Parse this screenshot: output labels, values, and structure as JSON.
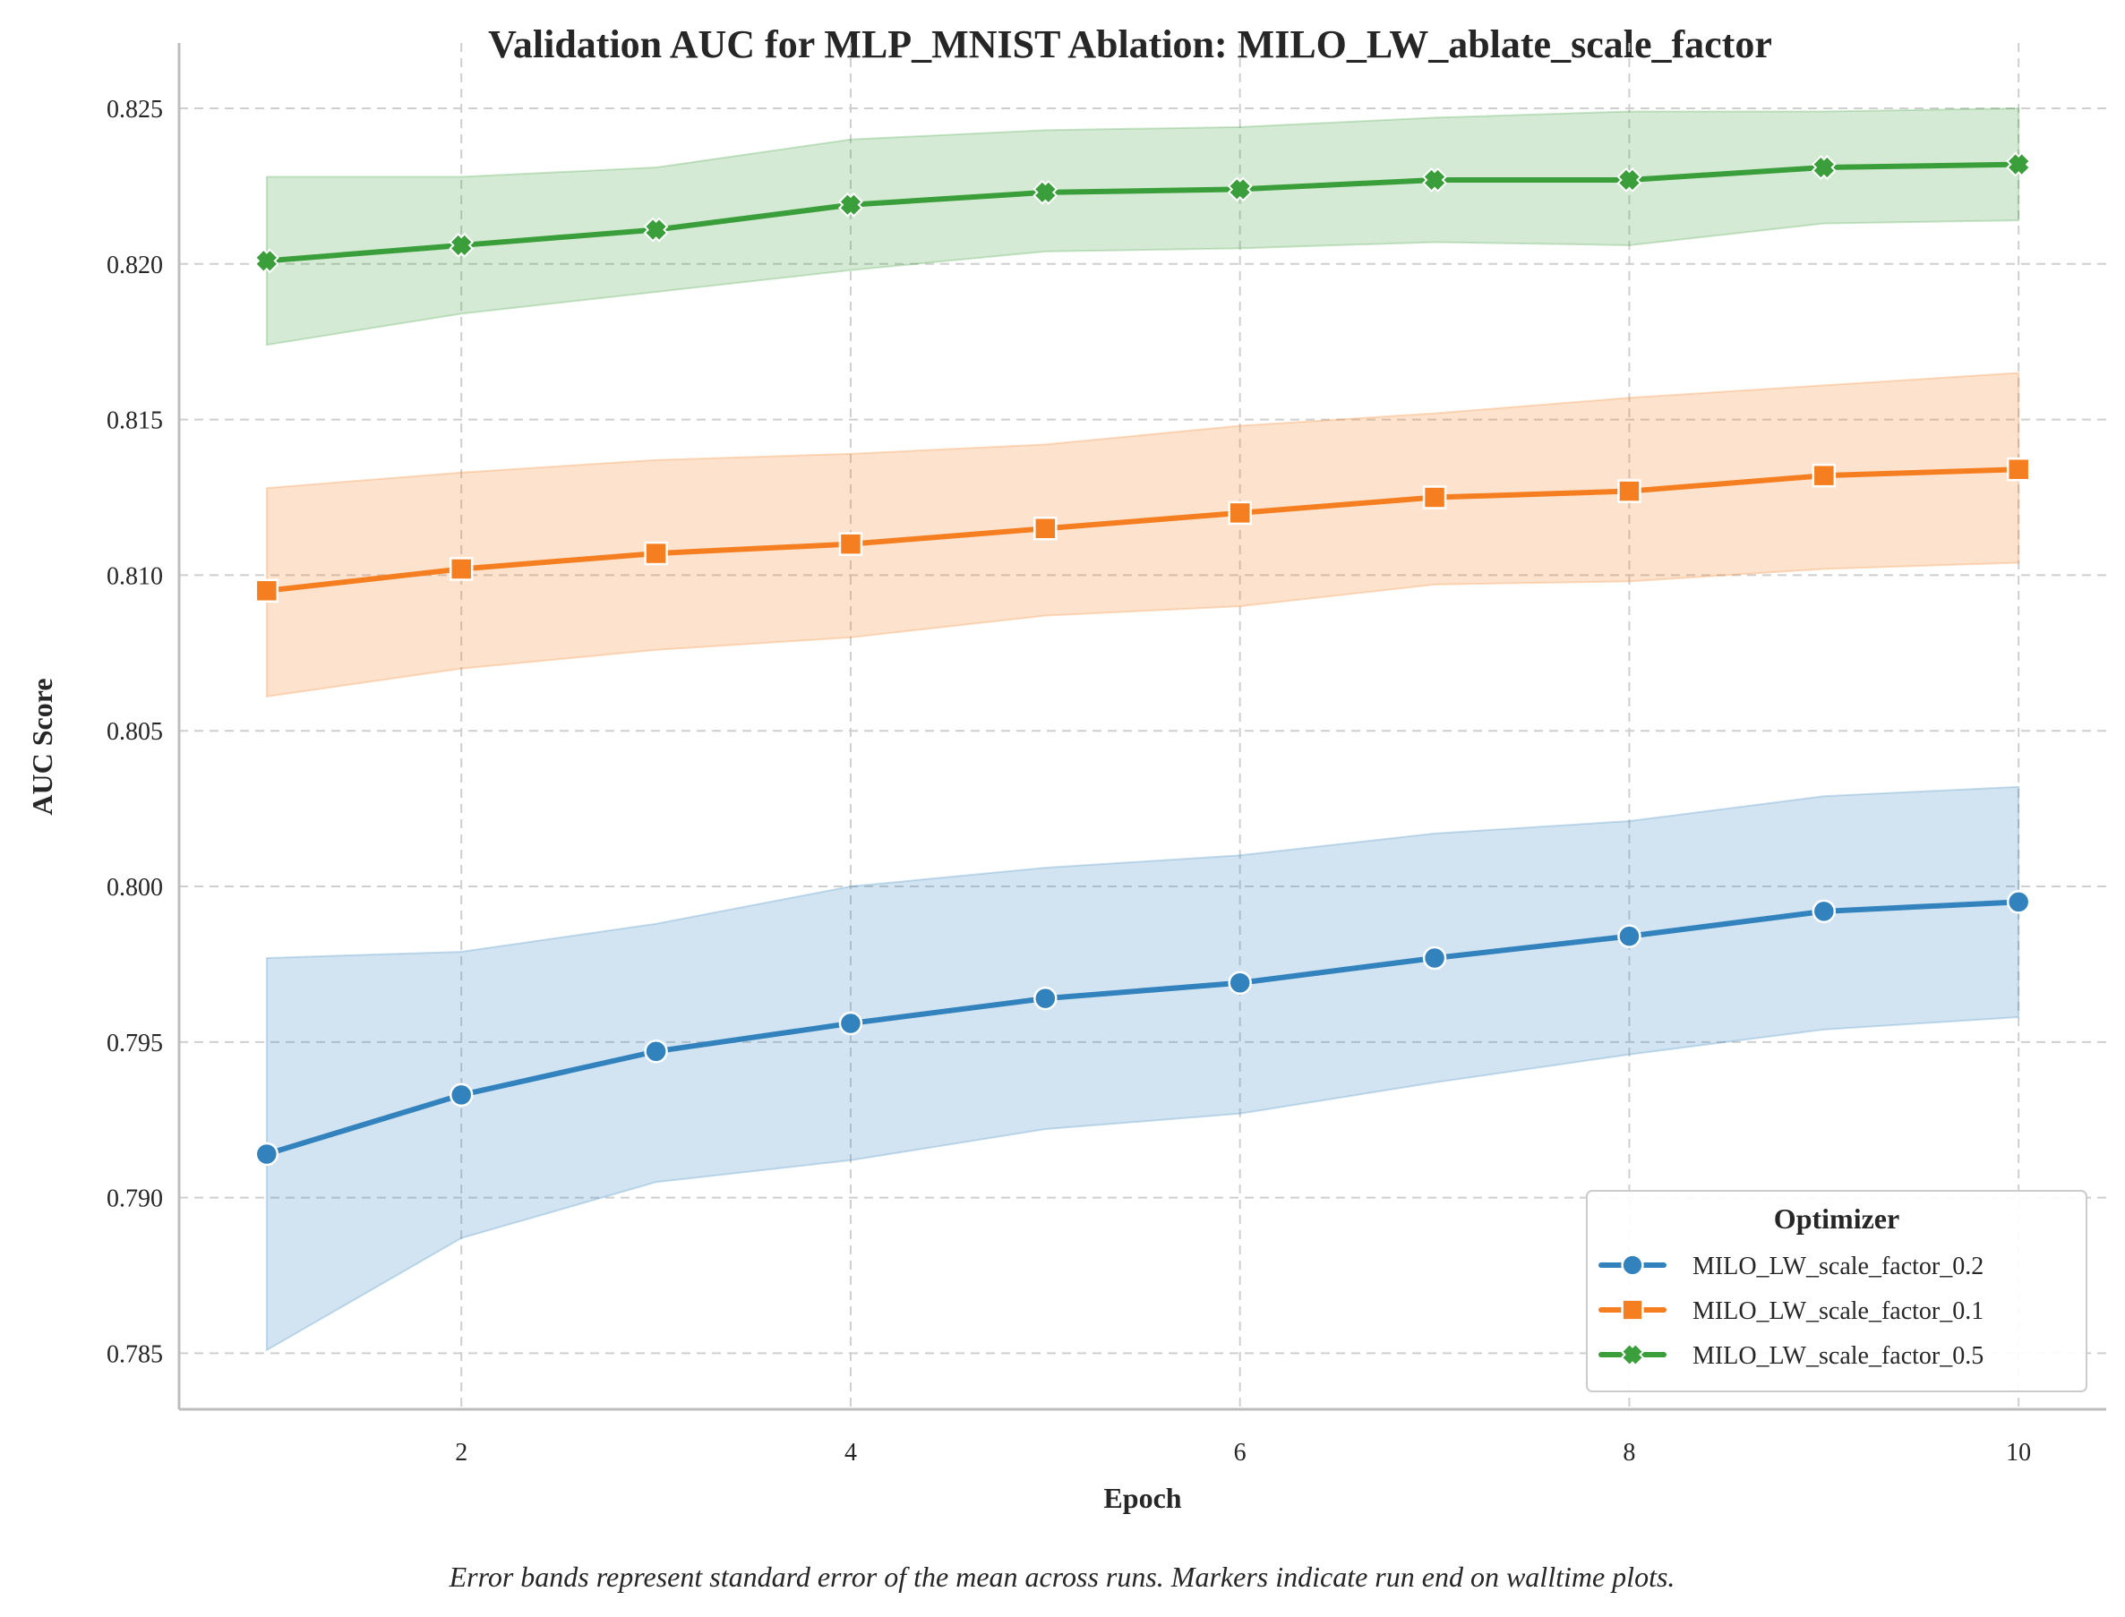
{
  "chart_data": {
    "type": "line",
    "title": "Validation AUC for MLP_MNIST Ablation: MILO_LW_ablate_scale_factor",
    "xlabel": "Epoch",
    "ylabel": "AUC Score",
    "xlim": [
      0.55,
      10.45
    ],
    "ylim": [
      0.7832,
      0.8271
    ],
    "x_ticks": [
      2,
      4,
      6,
      8,
      10
    ],
    "y_ticks": [
      0.785,
      0.79,
      0.795,
      0.8,
      0.805,
      0.81,
      0.815,
      0.82,
      0.825
    ],
    "y_tick_labels": [
      "0.785",
      "0.790",
      "0.795",
      "0.800",
      "0.805",
      "0.810",
      "0.815",
      "0.820",
      "0.825"
    ],
    "grid": true,
    "legend": {
      "title": "Optimizer",
      "placement": "lower-right"
    },
    "caption": "Error bands represent standard error of the mean across runs. Markers indicate run end on walltime plots.",
    "x": [
      1,
      2,
      3,
      4,
      5,
      6,
      7,
      8,
      9,
      10
    ],
    "series": [
      {
        "name": "MILO_LW_scale_factor_0.2",
        "color": "#3282bd",
        "marker": "circle",
        "values": [
          0.7914,
          0.7933,
          0.7947,
          0.7956,
          0.7964,
          0.7969,
          0.7977,
          0.7984,
          0.7992,
          0.7995
        ],
        "lower": [
          0.7851,
          0.7887,
          0.7905,
          0.7912,
          0.7922,
          0.7927,
          0.7937,
          0.7946,
          0.7954,
          0.7958
        ],
        "upper": [
          0.7977,
          0.7979,
          0.7988,
          0.8,
          0.8006,
          0.801,
          0.8017,
          0.8021,
          0.8029,
          0.8032
        ]
      },
      {
        "name": "MILO_LW_scale_factor_0.1",
        "color": "#f57f20",
        "marker": "square",
        "values": [
          0.8095,
          0.8102,
          0.8107,
          0.811,
          0.8115,
          0.812,
          0.8125,
          0.8127,
          0.8132,
          0.8134
        ],
        "lower": [
          0.8061,
          0.807,
          0.8076,
          0.808,
          0.8087,
          0.809,
          0.8097,
          0.8098,
          0.8102,
          0.8104
        ],
        "upper": [
          0.8128,
          0.8133,
          0.8137,
          0.8139,
          0.8142,
          0.8148,
          0.8152,
          0.8157,
          0.8161,
          0.8165
        ]
      },
      {
        "name": "MILO_LW_scale_factor_0.5",
        "color": "#3a9e3a",
        "marker": "x",
        "values": [
          0.8201,
          0.8206,
          0.8211,
          0.8219,
          0.8223,
          0.8224,
          0.8227,
          0.8227,
          0.8231,
          0.8232
        ],
        "lower": [
          0.8174,
          0.8184,
          0.8191,
          0.8198,
          0.8204,
          0.8205,
          0.8207,
          0.8206,
          0.8213,
          0.8214
        ],
        "upper": [
          0.8228,
          0.8228,
          0.8231,
          0.824,
          0.8243,
          0.8244,
          0.8247,
          0.8249,
          0.8249,
          0.825
        ]
      }
    ]
  }
}
